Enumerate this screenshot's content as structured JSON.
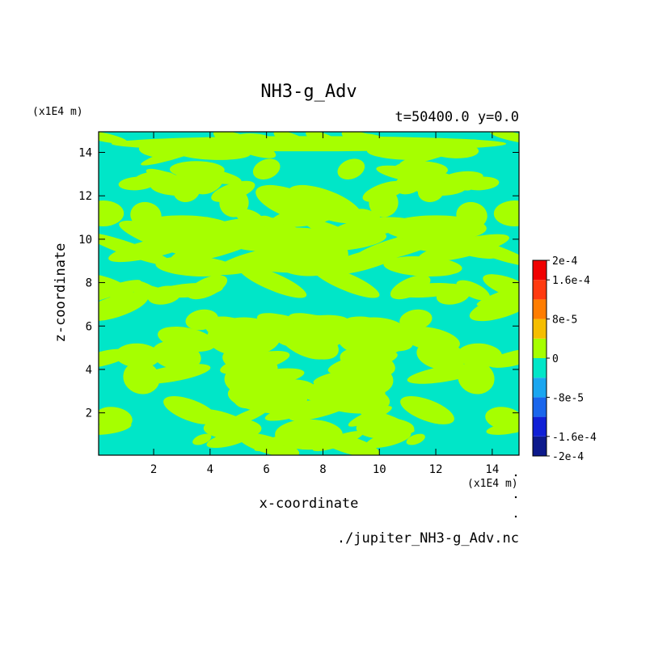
{
  "chart_data": {
    "type": "heatmap",
    "title": "NH3-g_Adv",
    "subtitle": "t=50400.0 y=0.0",
    "xlabel": "x-coordinate",
    "ylabel": "z-coordinate",
    "x_unit": "(x1E4 m)",
    "y_unit": "(x1E4 m)",
    "xlim": [
      0.05,
      14.95
    ],
    "ylim": [
      0.05,
      14.95
    ],
    "x_ticks": [
      "2",
      "4",
      "6",
      "8",
      "10",
      "12",
      "14"
    ],
    "x_tick_values": [
      2,
      4,
      6,
      8,
      10,
      12,
      14
    ],
    "y_ticks": [
      "2",
      "4",
      "6",
      "8",
      "10",
      "12",
      "14"
    ],
    "y_tick_values": [
      2,
      4,
      6,
      8,
      10,
      12,
      14
    ],
    "colorbar": {
      "levels": [
        -0.0002,
        -0.00016,
        -0.00012,
        -8e-05,
        -4e-05,
        0,
        4e-05,
        8e-05,
        0.00012,
        0.00016,
        0.0002
      ],
      "colors": [
        "#0d1a8c",
        "#1020d6",
        "#1a66ec",
        "#1aa6f0",
        "#00e6c8",
        "#a6ff00",
        "#f5be00",
        "#ff7d00",
        "#ff3a10",
        "#f00000"
      ],
      "labels": [
        {
          "text": "2e-4",
          "value": 0.0002
        },
        {
          "text": "1.6e-4",
          "value": 0.00016
        },
        {
          "text": "8e-5",
          "value": 8e-05
        },
        {
          "text": "0",
          "value": 0
        },
        {
          "text": "-8e-5",
          "value": -8e-05
        },
        {
          "text": "-1.6e-4",
          "value": -0.00016
        },
        {
          "text": "-2e-4",
          "value": -0.0002
        }
      ]
    },
    "field_classes": [
      "positive (0 to 4e-5)",
      "negative (-4e-5 to 0)"
    ],
    "field_colors": {
      "positive": "#a6ff00",
      "negative": "#00e6c8"
    }
  },
  "footer": {
    "filename": "./jupiter_NH3-g_Adv.nc"
  }
}
